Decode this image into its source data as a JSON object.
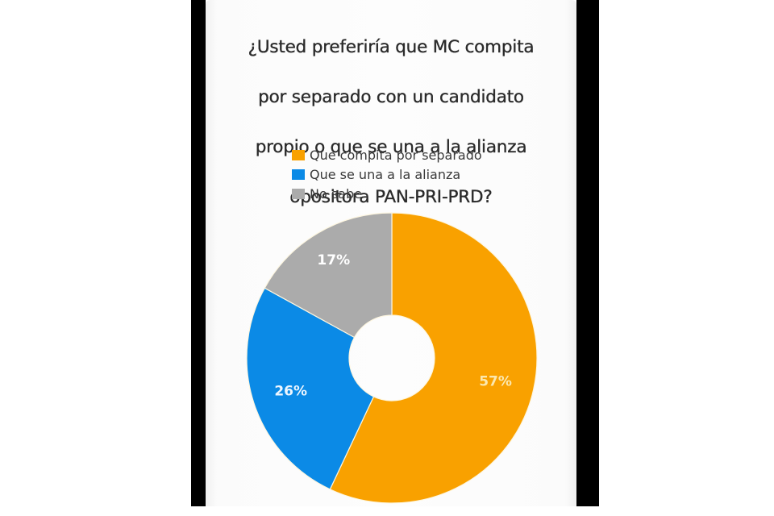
{
  "question": {
    "line1": "¿Usted preferiría que MC compita",
    "line2": "por separado con un candidato",
    "line3": "propio o que se una a la alianza",
    "line4": "opositora PAN-PRI-PRD?"
  },
  "legend": [
    {
      "label": "Que compita por separado",
      "color": "#f9a100"
    },
    {
      "label": "Que se una a la alianza",
      "color": "#0b8ae6"
    },
    {
      "label": "No sabe",
      "color": "#ababab"
    }
  ],
  "slices": [
    {
      "label": "57%",
      "value": 57,
      "color": "#f9a100",
      "text_color": "#fbe8b0"
    },
    {
      "label": "26%",
      "value": 26,
      "color": "#0b8ae6",
      "text_color": "#eef6ff"
    },
    {
      "label": "17%",
      "value": 17,
      "color": "#ababab",
      "text_color": "#ffffff"
    }
  ],
  "chart_data": {
    "type": "pie",
    "variant": "donut",
    "title": "¿Usted preferiría que MC compita por separado con un candidato propio o que se una a la alianza opositora PAN-PRI-PRD?",
    "categories": [
      "Que compita por separado",
      "Que se una a la alianza",
      "No sabe"
    ],
    "values": [
      57,
      26,
      17
    ],
    "unit": "%",
    "colors": [
      "#f9a100",
      "#0b8ae6",
      "#ababab"
    ],
    "data_labels": [
      "57%",
      "26%",
      "17%"
    ],
    "legend_position": "top",
    "start_angle": "12 o'clock",
    "direction": "clockwise"
  }
}
